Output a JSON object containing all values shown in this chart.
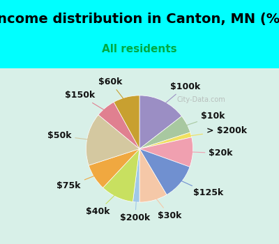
{
  "title": "Income distribution in Canton, MN (%)",
  "subtitle": "All residents",
  "title_color": "#000000",
  "subtitle_color": "#00aa44",
  "background_top": "#00ffff",
  "background_chart": "#e8f5e9",
  "watermark": "City-Data.com",
  "segments": [
    {
      "label": "$100k",
      "value": 14.5,
      "color": "#9b8ec4"
    },
    {
      "label": "$10k",
      "value": 5.5,
      "color": "#a8c8a0"
    },
    {
      "label": "> $200k",
      "value": 1.5,
      "color": "#f0e060"
    },
    {
      "label": "$20k",
      "value": 9.0,
      "color": "#f0a0b0"
    },
    {
      "label": "$125k",
      "value": 11.0,
      "color": "#7090d0"
    },
    {
      "label": "$30k",
      "value": 8.5,
      "color": "#f5c8a8"
    },
    {
      "label": "$200k",
      "value": 2.0,
      "color": "#a0c8e8"
    },
    {
      "label": "$40k",
      "value": 10.0,
      "color": "#c8e060"
    },
    {
      "label": "$75k",
      "value": 8.0,
      "color": "#f0a840"
    },
    {
      "label": "$50k",
      "value": 16.0,
      "color": "#d4c8a0"
    },
    {
      "label": "$150k",
      "value": 6.0,
      "color": "#e08090"
    },
    {
      "label": "$60k",
      "value": 8.0,
      "color": "#c8a030"
    }
  ],
  "label_fontsize": 9,
  "title_fontsize": 14,
  "subtitle_fontsize": 11
}
